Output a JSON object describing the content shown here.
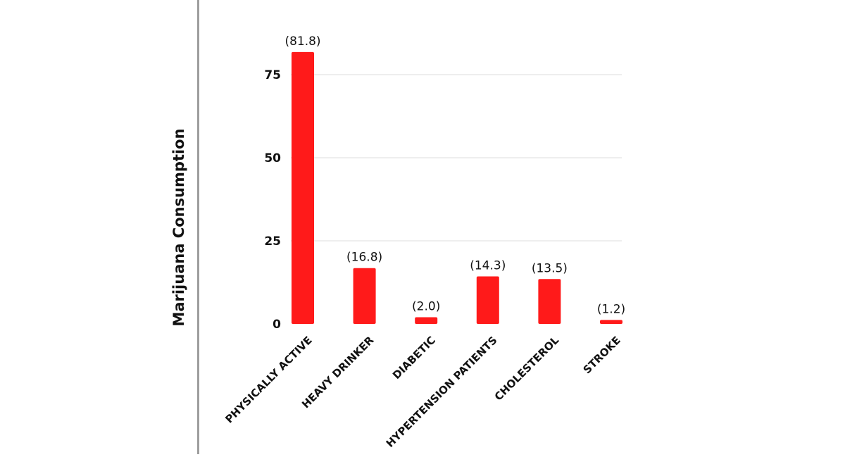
{
  "chart_data": {
    "type": "bar",
    "title": "",
    "xlabel": "",
    "ylabel": "Marijuana Consumption",
    "categories": [
      "PHYSICALLY ACTIVE",
      "HEAVY DRINKER",
      "DIABETIC",
      "HYPERTENSION PATIENTS",
      "CHOLESTEROL",
      "STROKE"
    ],
    "values": [
      81.8,
      16.8,
      2.0,
      14.3,
      13.5,
      1.2
    ],
    "data_labels": [
      "(81.8)",
      "(16.8)",
      "(2.0)",
      "(14.3)",
      "(13.5)",
      "(1.2)"
    ],
    "ylim": [
      0,
      81.8
    ],
    "yticks": [
      0,
      25,
      50,
      75
    ],
    "grid": true,
    "legend": "none",
    "colors": {
      "bar": "#ff1a1a",
      "grid": "#dddddd",
      "divider": "#9e9e9e"
    }
  }
}
